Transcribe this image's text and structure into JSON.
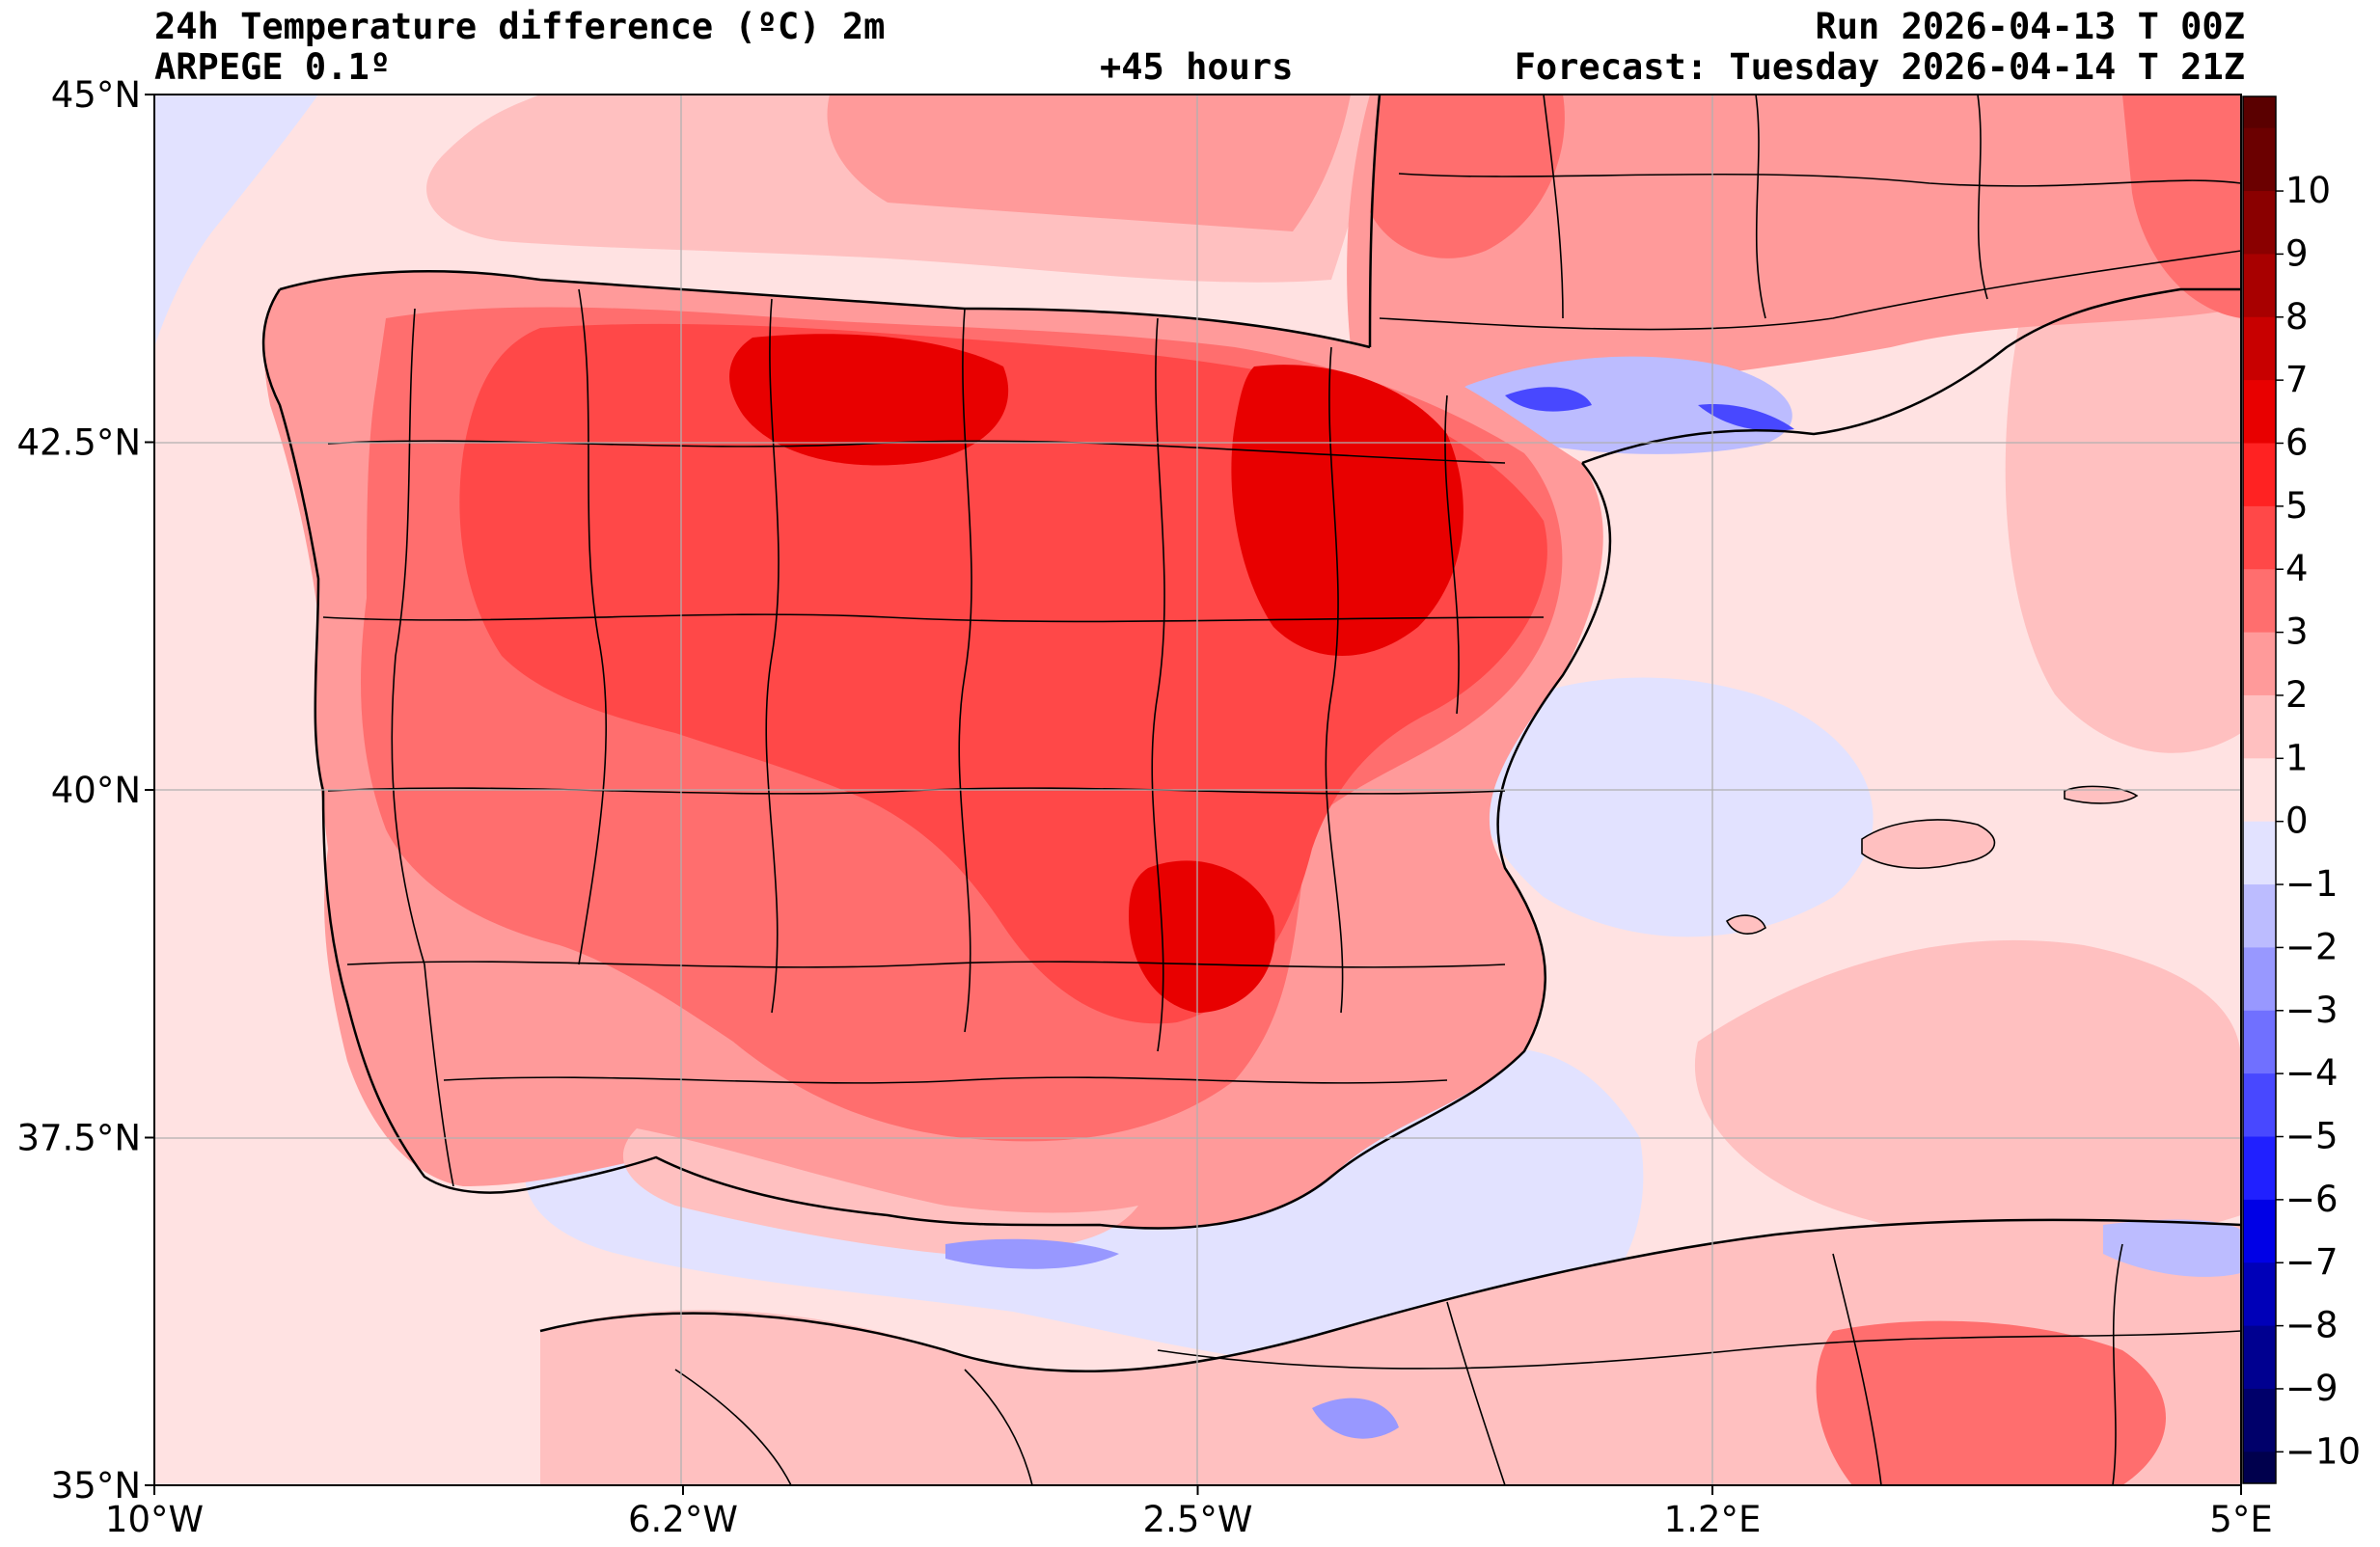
{
  "header": {
    "title": "24h Temperature difference (ºC) 2m",
    "model": "ARPEGE 0.1º",
    "lead_time": "+45 hours",
    "run": "Run 2026-04-13 T 00Z",
    "forecast": "Forecast: Tuesday 2026-04-14 T 21Z"
  },
  "map": {
    "lat_range": [
      35,
      45
    ],
    "lon_range": [
      -10,
      5
    ],
    "lat_ticks": [
      {
        "value": 45,
        "label": "45°N"
      },
      {
        "value": 42.5,
        "label": "42.5°N"
      },
      {
        "value": 40,
        "label": "40°N"
      },
      {
        "value": 37.5,
        "label": "37.5°N"
      },
      {
        "value": 35,
        "label": "35°N"
      }
    ],
    "lon_ticks": [
      {
        "value": -10,
        "label": "10°W"
      },
      {
        "value": -6.2,
        "label": "6.2°W"
      },
      {
        "value": -2.5,
        "label": "2.5°W"
      },
      {
        "value": 1.2,
        "label": "1.2°E"
      },
      {
        "value": 5,
        "label": "5°E"
      }
    ],
    "region": "Iberian Peninsula, Balearic Islands, southern France and North Africa"
  },
  "colorbar": {
    "labels": [
      "10",
      "9",
      "8",
      "7",
      "6",
      "5",
      "4",
      "3",
      "2",
      "1",
      "0",
      "−1",
      "−2",
      "−3",
      "−4",
      "−5",
      "−6",
      "−7",
      "−8",
      "−9",
      "−10"
    ],
    "colors": [
      "#6b0000",
      "#8a0000",
      "#a80000",
      "#c80000",
      "#e80000",
      "#ff2222",
      "#ff4848",
      "#ff6e6e",
      "#ff9a9a",
      "#ffc0c0",
      "#ffe2e2",
      "#e2e2ff",
      "#bcbcff",
      "#9898ff",
      "#7070ff",
      "#4848ff",
      "#2020ff",
      "#0000e6",
      "#0000b8",
      "#000090",
      "#00006a"
    ],
    "top_color": "#5a0000",
    "bottom_color": "#00004d"
  },
  "colors": {
    "sea_positive": "#ffe2e2",
    "sea_negative": "#e2e2ff",
    "land_warm": "#ff9a9a",
    "land_hot": "#ff4848",
    "land_hottest": "#e80000",
    "border": "#000000",
    "grid": "#b0b0b0"
  }
}
